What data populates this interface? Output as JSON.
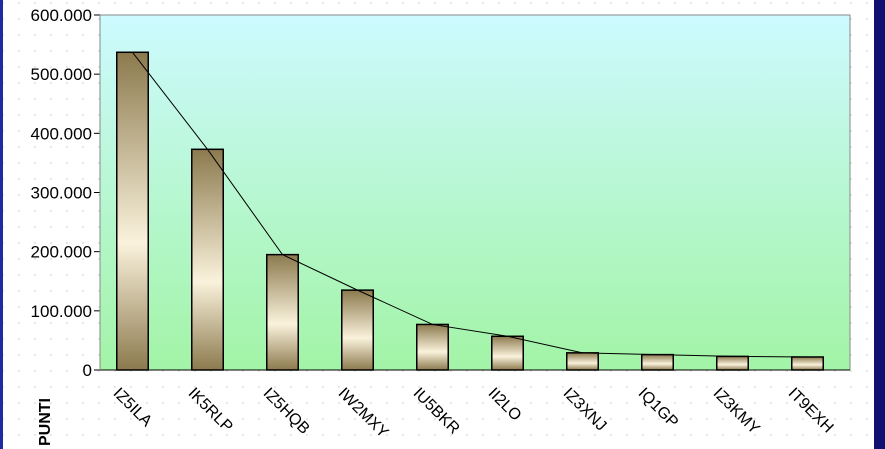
{
  "chart_data": {
    "type": "bar",
    "categories": [
      "IZ5ILA",
      "IK5RLP",
      "IZ5HQB",
      "IW2MXY",
      "IU5BKR",
      "II2LO",
      "IZ3XNJ",
      "IQ1GP",
      "IZ3KMY",
      "IT9EXH"
    ],
    "values": [
      537000,
      373000,
      195000,
      135000,
      77000,
      57000,
      29000,
      26000,
      23000,
      22000
    ],
    "title": "",
    "xlabel": "",
    "ylabel": "PUNTI",
    "ylim": [
      0,
      600000
    ],
    "yticks": [
      "0",
      "100.000",
      "200.000",
      "300.000",
      "400.000",
      "500.000",
      "600.000"
    ],
    "trend_line": true,
    "grid": false,
    "legend": "none",
    "colors": {
      "plot_top": "#cdfaff",
      "plot_bottom": "#a2f4a6",
      "bar_dark": "#8c7a4e",
      "bar_light": "#faf2dc",
      "frame_left": "#1e2a9e",
      "frame_right": "#101070"
    }
  }
}
